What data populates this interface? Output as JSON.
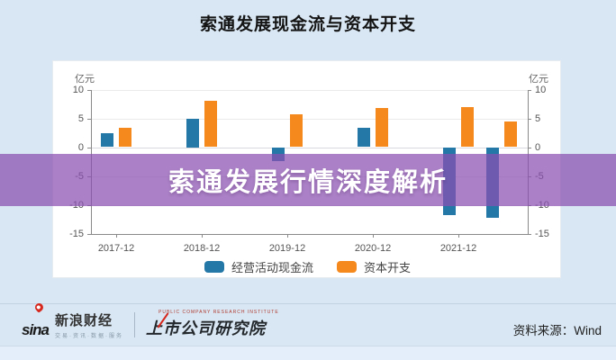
{
  "header": {
    "title": "索通发展现金流与资本开支"
  },
  "overlay": {
    "text": "索通发展行情深度解析",
    "color": "#8A4FB0"
  },
  "chart_data": {
    "type": "bar",
    "title": "索通发展现金流与资本开支",
    "unit_label": "亿元",
    "categories": [
      "2017-12",
      "2018-12",
      "2019-12",
      "2020-12",
      "2021-12",
      ""
    ],
    "positions": [
      0,
      1,
      2,
      3,
      4,
      4.5
    ],
    "series": [
      {
        "name": "经营活动现金流",
        "color": "#2478A8",
        "values": [
          2.4,
          5.0,
          -2.4,
          3.4,
          -11.8,
          -12.3
        ]
      },
      {
        "name": "资本开支",
        "color": "#F5891D",
        "values": [
          3.3,
          8.0,
          5.7,
          6.8,
          6.9,
          4.5
        ]
      }
    ],
    "ylim": [
      -15,
      10
    ],
    "yticks": [
      10,
      5,
      0,
      -5,
      -10,
      -15
    ],
    "grid": true,
    "legend_position": "bottom",
    "dual_axis": true
  },
  "footer": {
    "sina_en": "sina",
    "sina_cn": "新浪财经",
    "sina_tagline": "交易·资讯·数据·服务",
    "institute_caption": "PUBLIC COMPANY RESEARCH INSTITUTE",
    "institute_cn": "上市公司研究院",
    "source": "资料来源：Wind"
  }
}
